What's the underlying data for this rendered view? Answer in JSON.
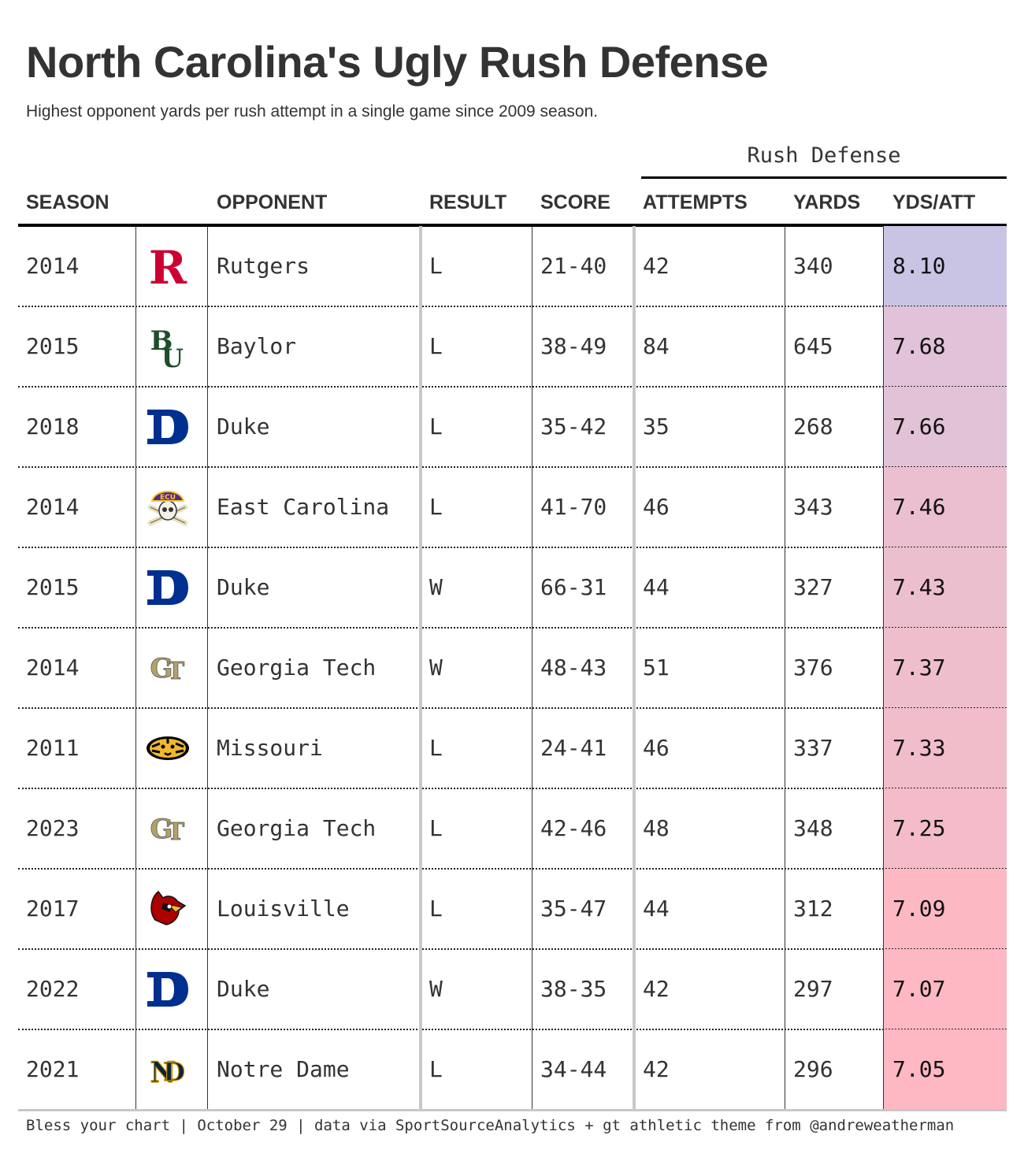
{
  "title": "North Carolina's Ugly Rush Defense",
  "subtitle": "Highest opponent yards per rush attempt in a single game since 2009 season.",
  "spanner": "Rush Defense",
  "columns": {
    "season": "SEASON",
    "opponent": "OPPONENT",
    "result": "RESULT",
    "score": "SCORE",
    "attempts": "ATTEMPTS",
    "yards": "YARDS",
    "ydsatt": "YDS/ATT"
  },
  "footer": "Bless your chart | October 29 | data via SportSourceAnalytics + gt athletic theme from @andreweatherman",
  "colors": {
    "text": "#333333",
    "scale_high": "#c9c4e4",
    "scale_low": "#feb8c3"
  },
  "chart_data": {
    "type": "table",
    "columns": [
      "SEASON",
      "OPPONENT",
      "RESULT",
      "SCORE",
      "ATTEMPTS",
      "YARDS",
      "YDS/ATT"
    ],
    "rows": [
      {
        "season": "2014",
        "logo": "rutgers-logo-icon",
        "opponent": "Rutgers",
        "result": "L",
        "score": "21-40",
        "attempts": "42",
        "yards": "340",
        "ydsatt": "8.10",
        "fill": "#c9c4e4"
      },
      {
        "season": "2015",
        "logo": "baylor-logo-icon",
        "opponent": "Baylor",
        "result": "L",
        "score": "38-49",
        "attempts": "84",
        "yards": "645",
        "ydsatt": "7.68",
        "fill": "#e2c2d8"
      },
      {
        "season": "2018",
        "logo": "duke-logo-icon",
        "opponent": "Duke",
        "result": "L",
        "score": "35-42",
        "attempts": "35",
        "yards": "268",
        "ydsatt": "7.66",
        "fill": "#e2c2d7"
      },
      {
        "season": "2014",
        "logo": "east-carolina-logo-icon",
        "opponent": "East Carolina",
        "result": "L",
        "score": "41-70",
        "attempts": "46",
        "yards": "343",
        "ydsatt": "7.46",
        "fill": "#ebbfd0"
      },
      {
        "season": "2015",
        "logo": "duke-logo-icon",
        "opponent": "Duke",
        "result": "W",
        "score": "66-31",
        "attempts": "44",
        "yards": "327",
        "ydsatt": "7.43",
        "fill": "#ecbfcf"
      },
      {
        "season": "2014",
        "logo": "georgia-tech-logo-icon",
        "opponent": "Georgia Tech",
        "result": "W",
        "score": "48-43",
        "attempts": "51",
        "yards": "376",
        "ydsatt": "7.37",
        "fill": "#efbecd"
      },
      {
        "season": "2011",
        "logo": "missouri-logo-icon",
        "opponent": "Missouri",
        "result": "L",
        "score": "24-41",
        "attempts": "46",
        "yards": "337",
        "ydsatt": "7.33",
        "fill": "#f1bdcb"
      },
      {
        "season": "2023",
        "logo": "georgia-tech-logo-icon",
        "opponent": "Georgia Tech",
        "result": "L",
        "score": "42-46",
        "attempts": "48",
        "yards": "348",
        "ydsatt": "7.25",
        "fill": "#f4bcc9"
      },
      {
        "season": "2017",
        "logo": "louisville-logo-icon",
        "opponent": "Louisville",
        "result": "L",
        "score": "35-47",
        "attempts": "44",
        "yards": "312",
        "ydsatt": "7.09",
        "fill": "#fcb9c4"
      },
      {
        "season": "2022",
        "logo": "duke-logo-icon",
        "opponent": "Duke",
        "result": "W",
        "score": "38-35",
        "attempts": "42",
        "yards": "297",
        "ydsatt": "7.07",
        "fill": "#fdb8c3"
      },
      {
        "season": "2021",
        "logo": "notre-dame-logo-icon",
        "opponent": "Notre Dame",
        "result": "L",
        "score": "34-44",
        "attempts": "42",
        "yards": "296",
        "ydsatt": "7.05",
        "fill": "#feb8c3"
      }
    ]
  }
}
